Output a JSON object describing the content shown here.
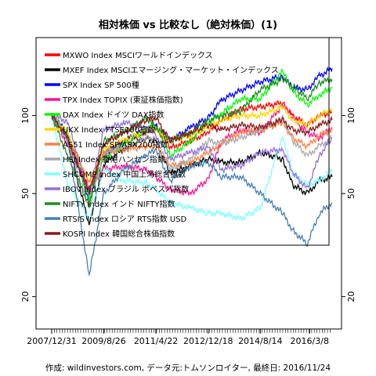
{
  "chart_data": {
    "type": "line",
    "title": "相対株価 vs 比較なし（絶対株価）(1)",
    "caption": "作成: wildinvestors.com, データ元:トムソンロイター, 最終日: 2016/11/24",
    "xlabel": "",
    "ylabel": "",
    "y_scale": "log",
    "ylim": [
      15,
      200
    ],
    "y_ticks": [
      20,
      50,
      100
    ],
    "x_tick_labels": [
      "2007/12/31",
      "2009/8/26",
      "2011/4/22",
      "2012/12/18",
      "2014/8/14",
      "2016/3/8"
    ],
    "x": [
      "2007/12/31",
      "2008/6/30",
      "2009/3/9",
      "2009/8/26",
      "2010/4/22",
      "2010/12/31",
      "2011/4/22",
      "2011/10/4",
      "2012/6/1",
      "2012/12/18",
      "2013/5/22",
      "2013/12/31",
      "2014/8/14",
      "2015/4/30",
      "2015/8/25",
      "2016/2/11",
      "2016/6/27",
      "2016/11/24"
    ],
    "grid": false,
    "legend_position": "top-left",
    "series": [
      {
        "name": "MXWO Index MSCIワールドインデックス",
        "color": "#ff0000",
        "values": [
          100,
          82,
          52,
          72,
          80,
          86,
          90,
          75,
          80,
          86,
          96,
          106,
          108,
          112,
          100,
          92,
          100,
          103
        ]
      },
      {
        "name": "MXEF Index MSCIエマージング・マーケット・インデックス",
        "color": "#000000",
        "values": [
          100,
          80,
          38,
          65,
          75,
          82,
          80,
          60,
          64,
          68,
          66,
          66,
          72,
          68,
          54,
          50,
          56,
          58
        ]
      },
      {
        "name": "SPX Index SP 500種",
        "color": "#0000ff",
        "values": [
          100,
          86,
          47,
          70,
          80,
          88,
          92,
          80,
          90,
          98,
          115,
          125,
          135,
          142,
          128,
          126,
          142,
          152
        ]
      },
      {
        "name": "TPX Index TOPIX (東証株価指数)",
        "color": "#ff1493",
        "values": [
          100,
          78,
          52,
          62,
          64,
          62,
          58,
          52,
          50,
          57,
          80,
          88,
          86,
          110,
          98,
          86,
          82,
          90
        ]
      },
      {
        "name": "DAX Index ドイツ DAX指数",
        "color": "#00ff00",
        "values": [
          100,
          85,
          48,
          68,
          78,
          88,
          92,
          70,
          80,
          94,
          102,
          116,
          116,
          148,
          124,
          110,
          120,
          128
        ]
      },
      {
        "name": "UKX Index FTSE100指数",
        "color": "#ffd700",
        "values": [
          100,
          86,
          55,
          75,
          80,
          88,
          88,
          80,
          84,
          90,
          96,
          100,
          100,
          108,
          96,
          92,
          100,
          106
        ]
      },
      {
        "name": "AS51 Index SP/ASX200指数",
        "color": "#ff8040",
        "values": [
          100,
          82,
          55,
          72,
          74,
          76,
          76,
          64,
          66,
          72,
          78,
          86,
          88,
          94,
          82,
          76,
          84,
          88
        ]
      },
      {
        "name": "HSI Index 香港ハンセン指数",
        "color": "#a9a9a9",
        "values": [
          100,
          80,
          44,
          72,
          76,
          82,
          82,
          62,
          68,
          80,
          78,
          82,
          88,
          98,
          80,
          70,
          76,
          82
        ]
      },
      {
        "name": "SHCOMP Index 中国上海総合指数",
        "color": "#80ffff",
        "values": [
          100,
          55,
          40,
          62,
          56,
          55,
          52,
          46,
          44,
          42,
          42,
          40,
          44,
          84,
          60,
          54,
          56,
          62
        ]
      },
      {
        "name": "IBOV Index ブラジル ボベスパ指数",
        "color": "#9370db",
        "values": [
          100,
          95,
          50,
          88,
          94,
          90,
          84,
          68,
          72,
          76,
          62,
          64,
          72,
          74,
          60,
          52,
          70,
          82
        ]
      },
      {
        "name": "NIFTY Index インド NIFTY指数",
        "color": "#228b22",
        "values": [
          100,
          70,
          45,
          80,
          86,
          98,
          90,
          80,
          86,
          96,
          100,
          104,
          126,
          138,
          130,
          116,
          134,
          138
        ]
      },
      {
        "name": "RTSIS Index ロシア RTS指数 USD",
        "color": "#4682b4",
        "values": [
          100,
          82,
          24,
          50,
          62,
          70,
          74,
          56,
          64,
          66,
          58,
          58,
          50,
          42,
          36,
          32,
          42,
          46
        ]
      },
      {
        "name": "KOSPI Index 韓国総合株価指数",
        "color": "#8b1a1a",
        "values": [
          100,
          82,
          50,
          78,
          86,
          96,
          98,
          80,
          86,
          92,
          88,
          92,
          90,
          96,
          88,
          86,
          92,
          96
        ]
      }
    ]
  }
}
